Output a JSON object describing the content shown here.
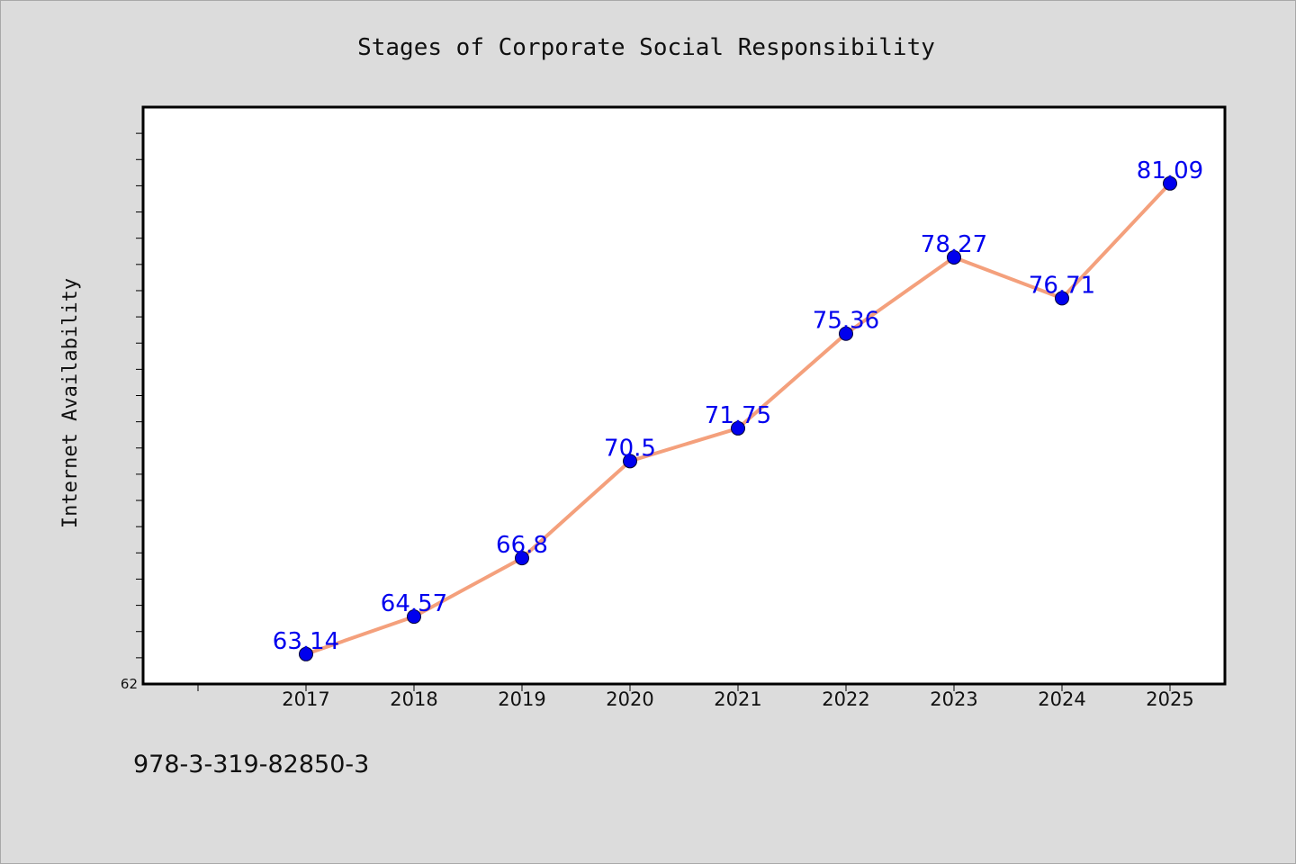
{
  "chart_data": {
    "type": "line",
    "title": "Stages of Corporate Social Responsibility",
    "xlabel": "",
    "ylabel": "Internet Availability",
    "categories": [
      "2017",
      "2018",
      "2019",
      "2020",
      "2021",
      "2022",
      "2023",
      "2024",
      "2025"
    ],
    "series": [
      {
        "values": [
          63.14,
          64.57,
          66.8,
          70.5,
          71.75,
          75.36,
          78.27,
          76.71,
          81.09
        ],
        "line_color": "#f4a07c",
        "marker_color": "#0000ee",
        "label_color": "#0000ee"
      }
    ],
    "data_labels": [
      "63.14",
      "64.57",
      "66.8",
      "70.5",
      "71.75",
      "75.36",
      "78.27",
      "76.71",
      "81.09"
    ],
    "ylim": [
      62,
      84
    ],
    "y_tick_labels": [
      "62"
    ],
    "grid": false,
    "legend": "none",
    "background_color": "#dcdcdc",
    "plot_background_color": "#ffffff"
  },
  "footer": {
    "code": "978-3-319-82850-3"
  }
}
